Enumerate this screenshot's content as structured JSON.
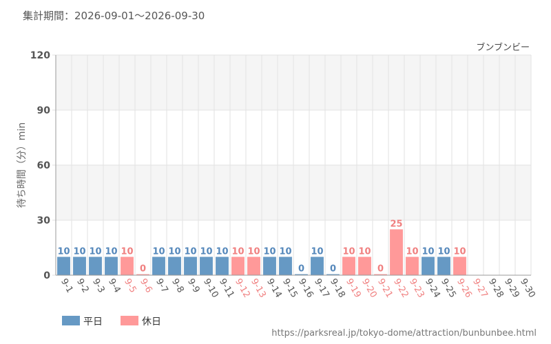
{
  "header": {
    "period": "集計期間：2026-09-01～2026-09-30"
  },
  "footer": {
    "url": "https://parksreal.jp/tokyo-dome/attraction/bunbunbee.html"
  },
  "colors": {
    "weekday": "#6699c4",
    "holiday": "#ff9999",
    "weekday_text": "#5588bb",
    "holiday_text": "#f08080",
    "grid": "#e2e2e2",
    "band": "#f5f5f5"
  },
  "chart_data": {
    "type": "bar",
    "title": "ブンブンビー",
    "xlabel": "",
    "ylabel": "待ち時間（分）min",
    "ylim": [
      0,
      120
    ],
    "yticks": [
      0,
      30,
      60,
      90,
      120
    ],
    "grid": true,
    "legend_position": "bottom-left",
    "categories": [
      "9-1",
      "9-2",
      "9-3",
      "9-4",
      "9-5",
      "9-6",
      "9-7",
      "9-8",
      "9-9",
      "9-10",
      "9-11",
      "9-12",
      "9-13",
      "9-14",
      "9-15",
      "9-16",
      "9-17",
      "9-18",
      "9-19",
      "9-20",
      "9-21",
      "9-22",
      "9-23",
      "9-24",
      "9-25",
      "9-26",
      "9-27",
      "9-28",
      "9-29",
      "9-30"
    ],
    "values": [
      10,
      10,
      10,
      10,
      10,
      0,
      10,
      10,
      10,
      10,
      10,
      10,
      10,
      10,
      10,
      0,
      10,
      0,
      10,
      10,
      0,
      25,
      10,
      10,
      10,
      10,
      null,
      null,
      null,
      null
    ],
    "day_type": [
      "weekday",
      "weekday",
      "weekday",
      "weekday",
      "holiday",
      "holiday",
      "weekday",
      "weekday",
      "weekday",
      "weekday",
      "weekday",
      "holiday",
      "holiday",
      "weekday",
      "weekday",
      "weekday",
      "weekday",
      "weekday",
      "holiday",
      "holiday",
      "holiday",
      "holiday",
      "holiday",
      "weekday",
      "weekday",
      "holiday",
      "holiday",
      "weekday",
      "weekday",
      "weekday"
    ],
    "series": [
      {
        "name": "平日",
        "key": "weekday"
      },
      {
        "name": "休日",
        "key": "holiday"
      }
    ]
  }
}
